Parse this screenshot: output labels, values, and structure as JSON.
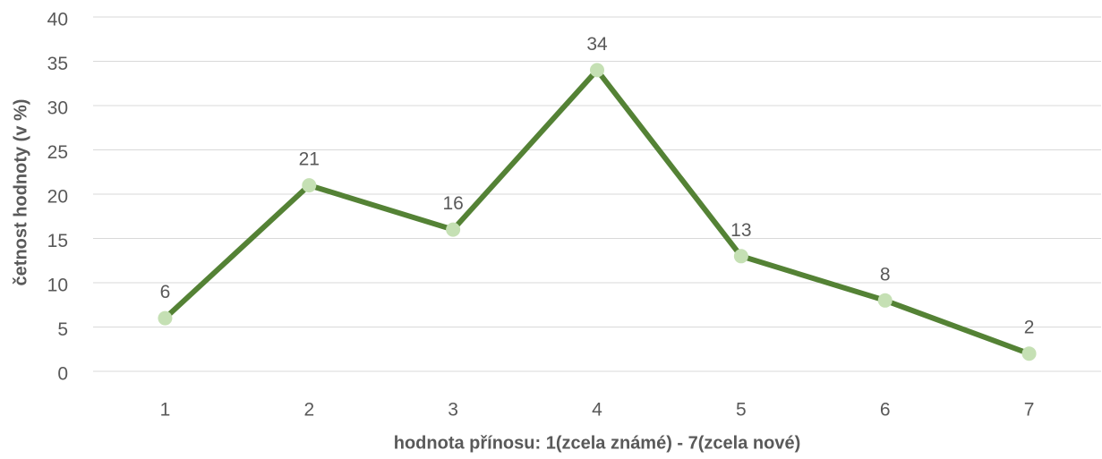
{
  "chart_data": {
    "type": "line",
    "x_label": "hodnota přínosu: 1(zcela známé) - 7(zcela nové)",
    "y_label": "četnost hodnoty  (v %)",
    "categories": [
      "1",
      "2",
      "3",
      "4",
      "5",
      "6",
      "7"
    ],
    "series": [
      {
        "name": "četnost",
        "color": "#548235",
        "marker_color": "#c5e0b4",
        "values": [
          6,
          21,
          16,
          34,
          13,
          8,
          2
        ]
      }
    ],
    "ylim": [
      0,
      40
    ],
    "yticks": [
      0,
      5,
      10,
      15,
      20,
      25,
      30,
      35,
      40
    ],
    "grid": true,
    "data_labels": true
  }
}
